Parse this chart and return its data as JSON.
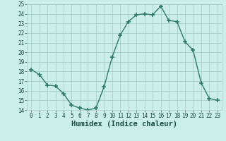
{
  "x": [
    0,
    1,
    2,
    3,
    4,
    5,
    6,
    7,
    8,
    9,
    10,
    11,
    12,
    13,
    14,
    15,
    16,
    17,
    18,
    19,
    20,
    21,
    22,
    23
  ],
  "y": [
    18.2,
    17.7,
    16.6,
    16.5,
    15.7,
    14.5,
    14.2,
    14.0,
    14.2,
    16.4,
    19.5,
    21.8,
    23.2,
    23.9,
    24.0,
    23.9,
    24.8,
    23.3,
    23.2,
    21.1,
    20.2,
    16.8,
    15.2,
    15.0
  ],
  "line_color": "#2d7a6a",
  "marker": "+",
  "marker_size": 4,
  "marker_lw": 1.2,
  "bg_color": "#cceee8",
  "grid_color": "#aacfca",
  "xlabel": "Humidex (Indice chaleur)",
  "ylim": [
    14,
    25
  ],
  "xlim": [
    -0.5,
    23.5
  ],
  "yticks": [
    14,
    15,
    16,
    17,
    18,
    19,
    20,
    21,
    22,
    23,
    24,
    25
  ],
  "xticks": [
    0,
    1,
    2,
    3,
    4,
    5,
    6,
    7,
    8,
    9,
    10,
    11,
    12,
    13,
    14,
    15,
    16,
    17,
    18,
    19,
    20,
    21,
    22,
    23
  ],
  "tick_fontsize": 5.5,
  "label_fontsize": 7.5,
  "line_width": 1.0
}
